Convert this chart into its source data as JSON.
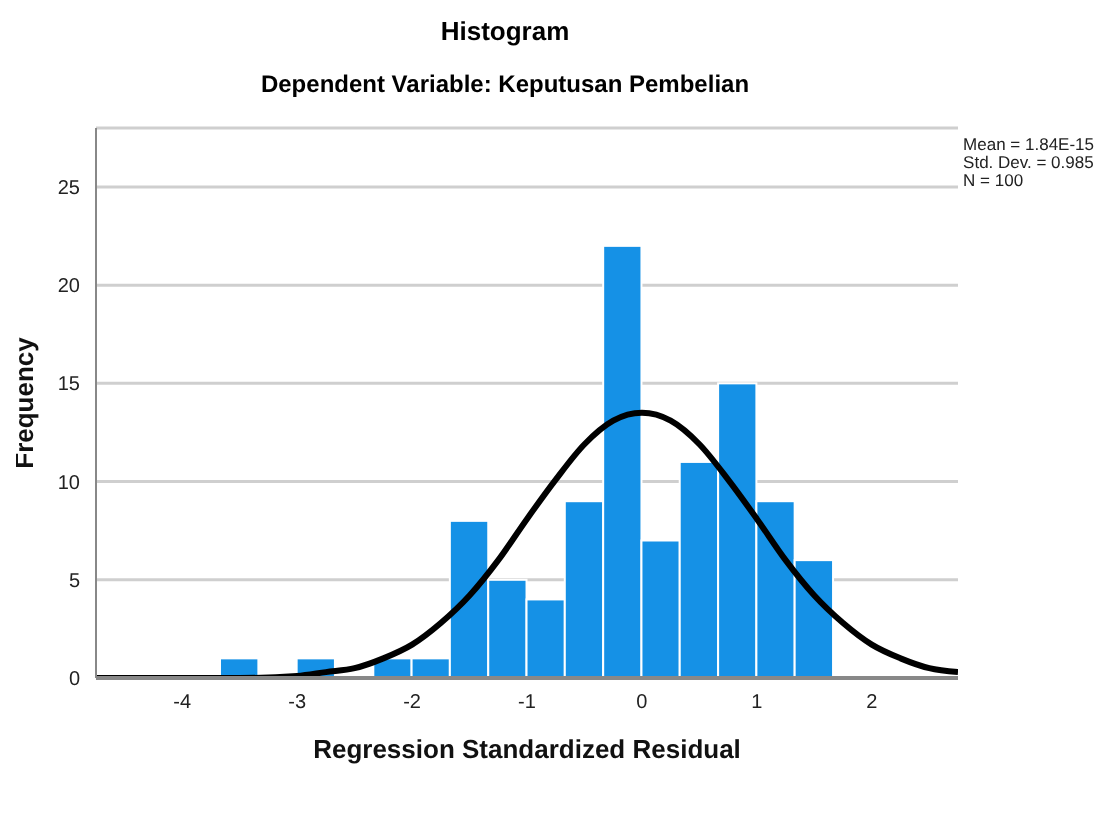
{
  "chart_data": {
    "type": "histogram",
    "title": "Histogram",
    "subtitle": "Dependent Variable: Keputusan Pembelian",
    "xlabel": "Regression Standardized Residual",
    "ylabel": "Frequency",
    "bins": [
      -3.667,
      -3.333,
      -3,
      -2.667,
      -2.333,
      -2,
      -1.667,
      -1.333,
      -1,
      -0.667,
      -0.333,
      0,
      0.333,
      0.667,
      1,
      1.333,
      1.667
    ],
    "values": [
      1,
      0,
      1,
      0,
      1,
      1,
      8,
      5,
      4,
      9,
      22,
      7,
      11,
      15,
      9,
      6
    ],
    "color": "#1591e6",
    "series": [
      {
        "type": "line",
        "color": "#000000",
        "x": [
          -4.75,
          -4,
          -3.5,
          -3,
          -2.75,
          -2.5,
          -2.25,
          -2,
          -1.75,
          -1.5,
          -1.25,
          -1,
          -0.75,
          -0.5,
          -0.25,
          0,
          0.25,
          0.5,
          0.75,
          1,
          1.25,
          1.5,
          1.75,
          2,
          2.25,
          2.5,
          2.75
        ],
        "values": [
          0,
          0,
          0,
          0.1,
          0.3,
          0.5,
          1.0,
          1.7,
          2.8,
          4.2,
          6.0,
          8.1,
          10.1,
          11.9,
          13.1,
          13.5,
          13.1,
          11.9,
          10.1,
          8.1,
          6.0,
          4.2,
          2.8,
          1.7,
          1.0,
          0.5,
          0.3
        ]
      }
    ],
    "xlim": [
      -4.75,
      2.75
    ],
    "xticks": [
      -4,
      -3,
      -2,
      -1,
      0,
      1,
      2
    ],
    "ylim": [
      0,
      28
    ],
    "yticks": [
      0,
      5,
      10,
      15,
      20,
      25
    ],
    "grid": "y",
    "marker": "none",
    "line_style": "solid",
    "annotations": [
      "Mean = 1.84E-15",
      "Std. Dev. = 0.985",
      "N = 100"
    ]
  }
}
